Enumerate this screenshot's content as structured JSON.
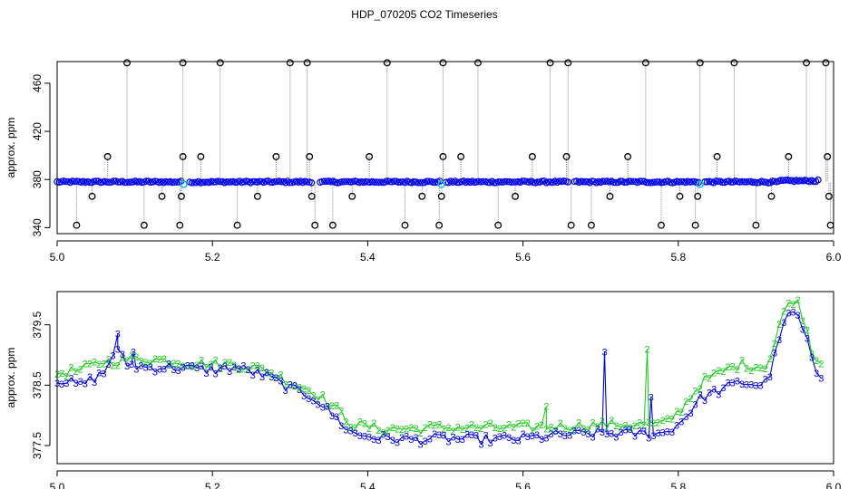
{
  "title": "HDP_070205  CO2 Timeseries",
  "colors": {
    "outlier": "#000000",
    "main": "#0000ee",
    "flag": "#00bfff",
    "series2": "#22cc22",
    "drop": "#888888"
  },
  "chart_data": [
    {
      "type": "scatter",
      "xlabel": "",
      "ylabel": "approx. ppm",
      "xlim": [
        5.0,
        6.0
      ],
      "ylim": [
        335,
        478
      ],
      "xticks": [
        "5.0",
        "5.2",
        "5.4",
        "5.6",
        "5.8",
        "6.0"
      ],
      "yticks": [
        "340",
        "380",
        "420",
        "460"
      ],
      "baseline": 378,
      "gaps": [
        [
          5.162,
          5.168
        ],
        [
          5.33,
          5.336
        ],
        [
          5.493,
          5.499
        ],
        [
          5.66,
          5.666
        ],
        [
          5.826,
          5.832
        ]
      ],
      "outliers": [
        [
          5.025,
          342
        ],
        [
          5.045,
          366
        ],
        [
          5.065,
          399
        ],
        [
          5.09,
          477
        ],
        [
          5.112,
          342
        ],
        [
          5.135,
          366
        ],
        [
          5.158,
          342
        ],
        [
          5.16,
          366
        ],
        [
          5.162,
          399
        ],
        [
          5.162,
          477
        ],
        [
          5.185,
          399
        ],
        [
          5.21,
          477
        ],
        [
          5.232,
          342
        ],
        [
          5.258,
          366
        ],
        [
          5.282,
          399
        ],
        [
          5.3,
          477
        ],
        [
          5.322,
          477
        ],
        [
          5.325,
          399
        ],
        [
          5.328,
          366
        ],
        [
          5.332,
          342
        ],
        [
          5.355,
          342
        ],
        [
          5.38,
          366
        ],
        [
          5.402,
          399
        ],
        [
          5.425,
          477
        ],
        [
          5.448,
          342
        ],
        [
          5.47,
          366
        ],
        [
          5.492,
          342
        ],
        [
          5.495,
          366
        ],
        [
          5.497,
          399
        ],
        [
          5.497,
          477
        ],
        [
          5.52,
          399
        ],
        [
          5.542,
          477
        ],
        [
          5.568,
          342
        ],
        [
          5.59,
          366
        ],
        [
          5.612,
          399
        ],
        [
          5.635,
          477
        ],
        [
          5.656,
          399
        ],
        [
          5.658,
          477
        ],
        [
          5.662,
          342
        ],
        [
          5.688,
          342
        ],
        [
          5.712,
          366
        ],
        [
          5.735,
          399
        ],
        [
          5.758,
          477
        ],
        [
          5.778,
          342
        ],
        [
          5.802,
          366
        ],
        [
          5.822,
          342
        ],
        [
          5.825,
          366
        ],
        [
          5.828,
          477
        ],
        [
          5.85,
          399
        ],
        [
          5.872,
          477
        ],
        [
          5.9,
          342
        ],
        [
          5.92,
          366
        ],
        [
          5.942,
          399
        ],
        [
          5.965,
          477
        ],
        [
          5.99,
          477
        ],
        [
          5.992,
          399
        ],
        [
          5.994,
          366
        ],
        [
          5.996,
          342
        ]
      ],
      "flags": [
        5.163,
        5.495,
        5.828
      ]
    },
    {
      "type": "line",
      "xlabel": "",
      "ylabel": "approx. ppm",
      "xlim": [
        5.0,
        6.0
      ],
      "ylim": [
        377.2,
        380.05
      ],
      "xticks": [
        "5.0",
        "5.2",
        "5.4",
        "5.6",
        "5.8",
        "6.0"
      ],
      "yticks": [
        "377.5",
        "378.5",
        "379.5"
      ],
      "series": [
        {
          "symbol": "3",
          "knots": [
            [
              5.0,
              378.6
            ],
            [
              5.03,
              378.5
            ],
            [
              5.06,
              378.7
            ],
            [
              5.075,
              379.1
            ],
            [
              5.09,
              378.85
            ],
            [
              5.11,
              378.8
            ],
            [
              5.15,
              378.8
            ],
            [
              5.2,
              378.75
            ],
            [
              5.23,
              378.8
            ],
            [
              5.27,
              378.65
            ],
            [
              5.3,
              378.45
            ],
            [
              5.33,
              378.3
            ],
            [
              5.36,
              377.95
            ],
            [
              5.38,
              377.7
            ],
            [
              5.42,
              377.62
            ],
            [
              5.46,
              377.6
            ],
            [
              5.5,
              377.62
            ],
            [
              5.55,
              377.6
            ],
            [
              5.6,
              377.62
            ],
            [
              5.65,
              377.68
            ],
            [
              5.7,
              377.7
            ],
            [
              5.75,
              377.7
            ],
            [
              5.78,
              377.7
            ],
            [
              5.8,
              377.85
            ],
            [
              5.83,
              378.3
            ],
            [
              5.86,
              378.45
            ],
            [
              5.88,
              378.55
            ],
            [
              5.91,
              378.5
            ],
            [
              5.92,
              378.75
            ],
            [
              5.93,
              379.3
            ],
            [
              5.945,
              379.75
            ],
            [
              5.955,
              379.6
            ],
            [
              5.965,
              379.25
            ],
            [
              5.975,
              378.75
            ],
            [
              5.985,
              378.65
            ]
          ],
          "spikes": [
            [
              5.705,
              379.05
            ],
            [
              5.765,
              378.3
            ],
            [
              5.078,
              379.35
            ],
            [
              5.098,
              379.05
            ]
          ]
        },
        {
          "symbol": "2",
          "knots": [
            [
              5.0,
              378.7
            ],
            [
              5.03,
              378.75
            ],
            [
              5.06,
              378.9
            ],
            [
              5.08,
              378.9
            ],
            [
              5.1,
              378.95
            ],
            [
              5.15,
              378.9
            ],
            [
              5.2,
              378.85
            ],
            [
              5.23,
              378.85
            ],
            [
              5.27,
              378.75
            ],
            [
              5.3,
              378.55
            ],
            [
              5.33,
              378.4
            ],
            [
              5.36,
              378.1
            ],
            [
              5.38,
              377.85
            ],
            [
              5.42,
              377.78
            ],
            [
              5.46,
              377.78
            ],
            [
              5.5,
              377.8
            ],
            [
              5.55,
              377.8
            ],
            [
              5.6,
              377.8
            ],
            [
              5.65,
              377.82
            ],
            [
              5.7,
              377.85
            ],
            [
              5.75,
              377.85
            ],
            [
              5.78,
              377.85
            ],
            [
              5.8,
              378.05
            ],
            [
              5.83,
              378.55
            ],
            [
              5.86,
              378.75
            ],
            [
              5.88,
              378.85
            ],
            [
              5.91,
              378.8
            ],
            [
              5.92,
              379.0
            ],
            [
              5.93,
              379.5
            ],
            [
              5.945,
              379.95
            ],
            [
              5.955,
              379.85
            ],
            [
              5.965,
              379.45
            ],
            [
              5.975,
              378.95
            ],
            [
              5.985,
              378.88
            ]
          ],
          "spikes": [
            [
              5.76,
              379.1
            ],
            [
              5.63,
              378.15
            ]
          ]
        }
      ]
    }
  ]
}
